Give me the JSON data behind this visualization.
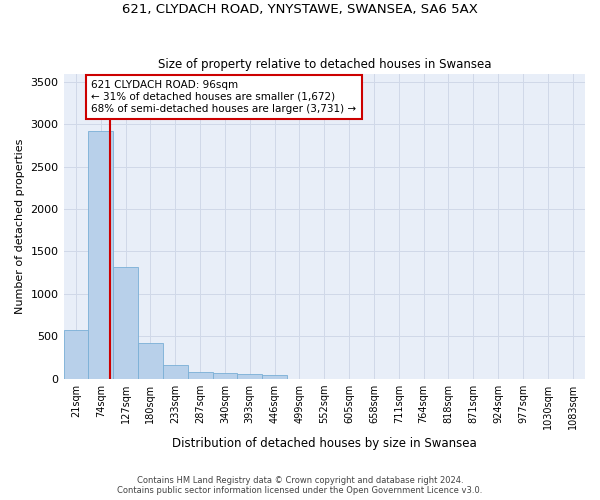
{
  "title1": "621, CLYDACH ROAD, YNYSTAWE, SWANSEA, SA6 5AX",
  "title2": "Size of property relative to detached houses in Swansea",
  "xlabel": "Distribution of detached houses by size in Swansea",
  "ylabel": "Number of detached properties",
  "bin_labels": [
    "21sqm",
    "74sqm",
    "127sqm",
    "180sqm",
    "233sqm",
    "287sqm",
    "340sqm",
    "393sqm",
    "446sqm",
    "499sqm",
    "552sqm",
    "605sqm",
    "658sqm",
    "711sqm",
    "764sqm",
    "818sqm",
    "871sqm",
    "924sqm",
    "977sqm",
    "1030sqm",
    "1083sqm"
  ],
  "bar_heights": [
    570,
    2920,
    1320,
    415,
    155,
    80,
    60,
    55,
    45,
    0,
    0,
    0,
    0,
    0,
    0,
    0,
    0,
    0,
    0,
    0,
    0
  ],
  "bar_color": "#b8d0ea",
  "bar_edge_color": "#7aafd6",
  "grid_color": "#d0d8e8",
  "background_color": "#e8eef8",
  "vline_color": "#cc0000",
  "vline_x": 1.38,
  "annotation_text": "621 CLYDACH ROAD: 96sqm\n← 31% of detached houses are smaller (1,672)\n68% of semi-detached houses are larger (3,731) →",
  "annotation_box_color": "#cc0000",
  "footer": "Contains HM Land Registry data © Crown copyright and database right 2024.\nContains public sector information licensed under the Open Government Licence v3.0.",
  "ylim": [
    0,
    3600
  ],
  "yticks": [
    0,
    500,
    1000,
    1500,
    2000,
    2500,
    3000,
    3500
  ]
}
